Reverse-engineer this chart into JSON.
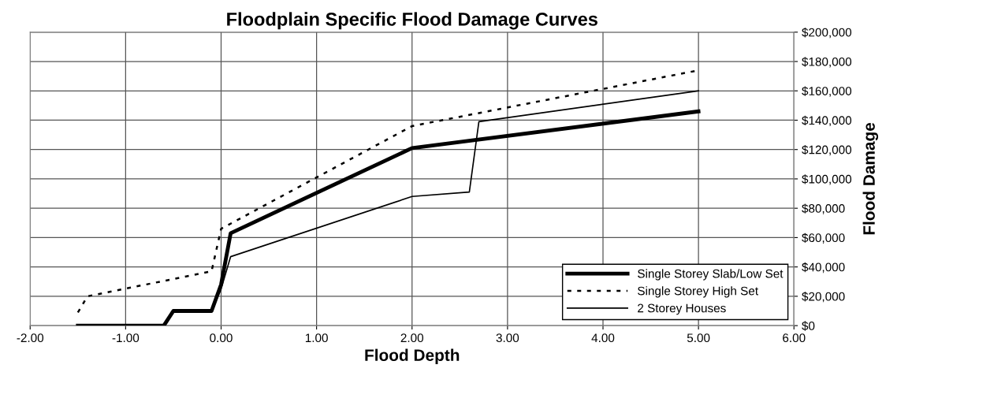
{
  "chart_data": {
    "type": "line",
    "title": "Floodplain Specific Flood Damage Curves",
    "xlabel": "Flood Depth",
    "ylabel": "Flood Damage",
    "xlim": [
      -2,
      6
    ],
    "xticks": [
      {
        "value": -2,
        "label": "-2.00"
      },
      {
        "value": -1,
        "label": "-1.00"
      },
      {
        "value": 0,
        "label": "0.00"
      },
      {
        "value": 1,
        "label": "1.00"
      },
      {
        "value": 2,
        "label": "2.00"
      },
      {
        "value": 3,
        "label": "3.00"
      },
      {
        "value": 4,
        "label": "4.00"
      },
      {
        "value": 5,
        "label": "5.00"
      },
      {
        "value": 6,
        "label": "6.00"
      }
    ],
    "ylim": [
      0,
      200000
    ],
    "yticks": [
      {
        "value": 0,
        "label": "$0"
      },
      {
        "value": 20000,
        "label": "$20,000"
      },
      {
        "value": 40000,
        "label": "$40,000"
      },
      {
        "value": 60000,
        "label": "$60,000"
      },
      {
        "value": 80000,
        "label": "$80,000"
      },
      {
        "value": 100000,
        "label": "$100,000"
      },
      {
        "value": 120000,
        "label": "$120,000"
      },
      {
        "value": 140000,
        "label": "$140,000"
      },
      {
        "value": 160000,
        "label": "$160,000"
      },
      {
        "value": 180000,
        "label": "$180,000"
      },
      {
        "value": 200000,
        "label": "$200,000"
      }
    ],
    "grid": true,
    "legend": "bottom right",
    "marker": "none",
    "series": [
      {
        "name": "Single Storey Slab/Low Set",
        "color": "#000000",
        "line_style": "solid",
        "x": [
          -1.5,
          -0.6,
          -0.5,
          -0.1,
          0,
          0.1,
          2,
          5
        ],
        "values": [
          0,
          0,
          10000,
          10000,
          28000,
          63000,
          121000,
          146000
        ]
      },
      {
        "name": "Single Storey High Set",
        "color": "#000000",
        "line_style": "dotted",
        "x": [
          -1.5,
          -1.4,
          -0.1,
          0,
          2,
          5
        ],
        "values": [
          9000,
          20000,
          37000,
          66000,
          136000,
          174000
        ]
      },
      {
        "name": "2 Storey Houses",
        "color": "#000000",
        "line_style": "solid",
        "x": [
          -1.5,
          -0.6,
          -0.5,
          -0.1,
          0,
          0.1,
          2,
          2.6,
          2.7,
          5
        ],
        "values": [
          0,
          0,
          10000,
          10000,
          25000,
          47000,
          88000,
          91000,
          139000,
          160000
        ]
      }
    ]
  }
}
